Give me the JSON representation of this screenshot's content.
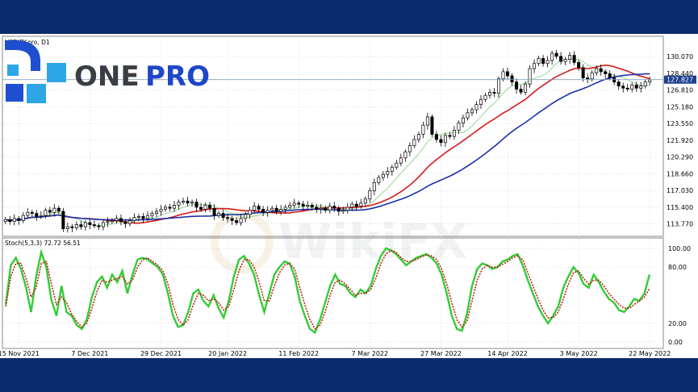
{
  "chart_data": [
    {
      "type": "candlestick",
      "title": "USDJPY.pro, D1",
      "ylim": [
        112.8,
        131.5
      ],
      "y_ticks": [
        "130.070",
        "128.440",
        "126.810",
        "125.180",
        "123.550",
        "121.920",
        "120.290",
        "118.660",
        "117.030",
        "115.400",
        "113.770"
      ],
      "current_price_label": "127.827",
      "current_price": 127.83,
      "x_ticks": [
        "15 Nov 2021",
        "7 Dec 2021",
        "29 Dec 2021",
        "20 Jan 2022",
        "11 Feb 2022",
        "7 Mar 2022",
        "27 Mar 2022",
        "14 Apr 2022",
        "3 May 2022",
        "22 May 2022"
      ],
      "closes": [
        114.2,
        114.0,
        114.3,
        114.1,
        114.6,
        114.9,
        114.8,
        114.5,
        114.6,
        115.1,
        114.9,
        115.3,
        115.0,
        113.3,
        113.5,
        113.4,
        113.7,
        113.5,
        113.9,
        113.7,
        113.6,
        113.5,
        113.9,
        114.0,
        114.1,
        114.3,
        114.0,
        113.8,
        114.1,
        114.4,
        114.5,
        114.3,
        114.6,
        114.8,
        115.0,
        115.2,
        115.4,
        115.3,
        115.6,
        115.9,
        116.0,
        115.8,
        115.9,
        115.4,
        115.2,
        115.6,
        115.3,
        114.6,
        114.8,
        114.4,
        114.3,
        114.1,
        113.9,
        114.3,
        114.7,
        115.1,
        115.5,
        115.2,
        114.9,
        115.1,
        115.3,
        115.0,
        115.2,
        115.4,
        115.6,
        115.8,
        115.7,
        115.5,
        115.6,
        115.4,
        115.2,
        115.3,
        115.1,
        115.5,
        115.3,
        115.0,
        115.1,
        115.4,
        115.7,
        115.5,
        115.8,
        116.2,
        117.0,
        117.8,
        118.3,
        118.6,
        118.9,
        119.3,
        119.7,
        120.2,
        120.8,
        121.4,
        122.0,
        122.5,
        123.4,
        124.2,
        122.5,
        122.0,
        121.7,
        122.4,
        122.3,
        122.9,
        123.6,
        124.1,
        124.6,
        124.9,
        125.4,
        125.9,
        126.3,
        126.6,
        126.5,
        127.9,
        128.6,
        128.2,
        127.6,
        126.9,
        126.6,
        127.4,
        128.9,
        129.4,
        129.9,
        129.4,
        129.7,
        130.4,
        130.1,
        129.6,
        129.8,
        130.2,
        129.5,
        129.0,
        128.0,
        127.9,
        128.5,
        128.9,
        128.6,
        128.4,
        128.0,
        127.6,
        127.2,
        127.0,
        126.9,
        127.3,
        127.0,
        127.2,
        127.6,
        127.8
      ],
      "series": [
        {
          "name": "",
          "color": "#8fd98f",
          "period": 8
        },
        {
          "name": "",
          "color": "#d61a1a",
          "period": 18
        },
        {
          "name": "",
          "color": "#1a2fa8",
          "period": 34
        }
      ]
    },
    {
      "type": "line",
      "title": "Stoch(5,3,3) 72.72 56.51",
      "ylim": [
        0,
        100
      ],
      "y_ticks": [
        "100.00",
        "80.00",
        "20.00",
        "0.00"
      ],
      "series": [
        {
          "name": "",
          "color": "#33cc33",
          "values": [
            40,
            82,
            90,
            78,
            58,
            32,
            70,
            96,
            80,
            45,
            28,
            60,
            32,
            28,
            18,
            14,
            24,
            48,
            64,
            70,
            58,
            72,
            64,
            76,
            52,
            72,
            88,
            90,
            88,
            84,
            80,
            72,
            52,
            28,
            16,
            18,
            32,
            52,
            56,
            44,
            38,
            50,
            36,
            26,
            44,
            70,
            88,
            92,
            84,
            72,
            50,
            32,
            52,
            72,
            80,
            86,
            84,
            70,
            44,
            28,
            14,
            10,
            24,
            42,
            60,
            72,
            62,
            60,
            52,
            48,
            56,
            52,
            60,
            78,
            92,
            100,
            98,
            94,
            88,
            82,
            86,
            90,
            92,
            94,
            90,
            84,
            72,
            52,
            28,
            14,
            12,
            30,
            60,
            78,
            84,
            82,
            78,
            80,
            86,
            88,
            92,
            94,
            82,
            66,
            52,
            38,
            28,
            20,
            28,
            38,
            58,
            70,
            80,
            74,
            62,
            58,
            72,
            64,
            54,
            46,
            42,
            34,
            32,
            38,
            46,
            44,
            52,
            72
          ]
        },
        {
          "name": "",
          "color": "#c0201a",
          "values": [
            38,
            70,
            84,
            84,
            68,
            48,
            58,
            84,
            86,
            62,
            40,
            48,
            42,
            30,
            22,
            16,
            20,
            36,
            54,
            66,
            64,
            66,
            68,
            70,
            62,
            66,
            80,
            88,
            90,
            86,
            82,
            76,
            62,
            40,
            24,
            18,
            24,
            40,
            52,
            50,
            44,
            46,
            42,
            34,
            38,
            56,
            76,
            88,
            88,
            80,
            64,
            44,
            44,
            60,
            74,
            82,
            84,
            78,
            58,
            40,
            24,
            14,
            18,
            32,
            50,
            64,
            66,
            62,
            56,
            50,
            52,
            52,
            56,
            68,
            84,
            94,
            98,
            96,
            90,
            86,
            86,
            88,
            91,
            93,
            92,
            88,
            78,
            62,
            42,
            24,
            16,
            22,
            44,
            66,
            78,
            82,
            80,
            80,
            83,
            86,
            90,
            92,
            88,
            74,
            60,
            46,
            34,
            26,
            26,
            32,
            46,
            62,
            74,
            76,
            68,
            62,
            66,
            66,
            60,
            52,
            46,
            40,
            36,
            36,
            40,
            44,
            48,
            57
          ]
        }
      ]
    }
  ],
  "brand": {
    "logo_text_one": "ONE",
    "logo_text_pro": "PRO",
    "watermark": "WikiFX"
  }
}
